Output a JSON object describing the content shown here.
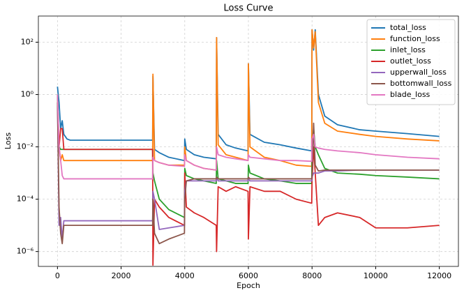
{
  "chart_data": {
    "type": "line",
    "title": "Loss Curve",
    "xlabel": "Epoch",
    "ylabel": "Loss",
    "x": [
      0,
      50,
      100,
      150,
      200,
      300,
      400,
      1000,
      2000,
      2990,
      3000,
      3050,
      3200,
      3500,
      3990,
      4000,
      4050,
      4300,
      4600,
      4990,
      5000,
      5050,
      5300,
      5600,
      5990,
      6000,
      6050,
      6500,
      7000,
      7500,
      7990,
      8000,
      8050,
      8100,
      8200,
      8400,
      8800,
      9500,
      10000,
      11000,
      12000
    ],
    "series": [
      {
        "name": "total_loss",
        "color": "#1f77b4",
        "values": [
          2,
          0.5,
          0.05,
          0.1,
          0.03,
          0.02,
          0.018,
          0.018,
          0.018,
          0.018,
          5,
          0.008,
          0.006,
          0.004,
          0.003,
          0.02,
          0.008,
          0.005,
          0.004,
          0.0035,
          150,
          0.03,
          0.012,
          0.009,
          0.007,
          15,
          0.03,
          0.015,
          0.012,
          0.009,
          0.007,
          300,
          50,
          300,
          1,
          0.15,
          0.07,
          0.045,
          0.04,
          0.032,
          0.025
        ]
      },
      {
        "name": "function_loss",
        "color": "#ff7f0e",
        "values": [
          1,
          0.01,
          0.003,
          0.005,
          0.003,
          0.003,
          0.003,
          0.003,
          0.003,
          0.003,
          6,
          0.003,
          0.0025,
          0.002,
          0.002,
          0.01,
          0.003,
          0.002,
          0.0015,
          0.0013,
          150,
          0.012,
          0.005,
          0.004,
          0.003,
          15,
          0.01,
          0.004,
          0.003,
          0.002,
          0.0018,
          300,
          60,
          250,
          0.5,
          0.08,
          0.04,
          0.03,
          0.025,
          0.02,
          0.017
        ]
      },
      {
        "name": "inlet_loss",
        "color": "#2ca02c",
        "values": [
          1,
          0.01,
          0.008,
          0.008,
          0.008,
          0.008,
          0.008,
          0.008,
          0.008,
          0.008,
          0.001,
          0.0005,
          0.0001,
          4e-05,
          2e-05,
          0.0015,
          0.0008,
          0.0006,
          0.0005,
          0.0004,
          0.003,
          0.0006,
          0.0005,
          0.0004,
          0.0004,
          0.002,
          0.001,
          0.0006,
          0.0005,
          0.0004,
          0.0004,
          0.01,
          0.05,
          0.01,
          0.005,
          0.0015,
          0.001,
          0.0009,
          0.0008,
          0.0007,
          0.0006
        ]
      },
      {
        "name": "outlet_loss",
        "color": "#d62728",
        "values": [
          0.5,
          0.01,
          0.05,
          0.05,
          0.008,
          0.008,
          0.008,
          0.008,
          0.008,
          0.008,
          3e-07,
          0.0001,
          5e-05,
          2e-05,
          1e-05,
          0.001,
          5e-05,
          3e-05,
          2e-05,
          1e-05,
          1e-06,
          0.0003,
          0.0002,
          0.0003,
          0.0002,
          3e-06,
          0.0003,
          0.0002,
          0.0002,
          0.0001,
          7e-05,
          0.0005,
          0.01,
          0.001,
          1e-05,
          2e-05,
          3e-05,
          2e-05,
          8e-06,
          8e-06,
          1e-05
        ]
      },
      {
        "name": "upperwall_loss",
        "color": "#9467bd",
        "values": [
          0.5,
          1e-05,
          2e-05,
          3e-06,
          1.5e-05,
          1.5e-05,
          1.5e-05,
          1.5e-05,
          1.5e-05,
          1.5e-05,
          0.0002,
          0.0001,
          7e-06,
          8e-06,
          1e-05,
          0.0002,
          0.0005,
          0.0005,
          0.0005,
          0.0005,
          0.0007,
          0.0005,
          0.0005,
          0.0005,
          0.0005,
          0.0006,
          0.0005,
          0.0005,
          0.0005,
          0.0005,
          0.0005,
          0.0007,
          0.001,
          0.001,
          0.001,
          0.0012,
          0.0012,
          0.0013,
          0.0013,
          0.0013,
          0.0013
        ]
      },
      {
        "name": "bottomwall_loss",
        "color": "#8c564b",
        "values": [
          0.5,
          5e-05,
          5e-06,
          2e-06,
          1e-05,
          1e-05,
          1e-05,
          1e-05,
          1e-05,
          1e-05,
          0.0001,
          5e-06,
          2e-06,
          3e-06,
          5e-06,
          0.0001,
          0.0005,
          0.0006,
          0.0006,
          0.0006,
          0.0007,
          0.0006,
          0.0006,
          0.0006,
          0.0006,
          0.0007,
          0.0006,
          0.0006,
          0.0006,
          0.0006,
          0.0006,
          0.0008,
          0.08,
          0.002,
          0.0012,
          0.0013,
          0.0013,
          0.0013,
          0.0013,
          0.0013,
          0.0013
        ]
      },
      {
        "name": "blade_loss",
        "color": "#e377c2",
        "values": [
          1,
          0.01,
          0.003,
          0.0008,
          0.0006,
          0.0006,
          0.0006,
          0.0006,
          0.0006,
          0.0006,
          0.004,
          0.003,
          0.0025,
          0.002,
          0.0018,
          0.005,
          0.003,
          0.002,
          0.0015,
          0.0013,
          0.01,
          0.005,
          0.004,
          0.0035,
          0.003,
          0.005,
          0.004,
          0.0035,
          0.003,
          0.003,
          0.0028,
          0.02,
          0.03,
          0.01,
          0.009,
          0.008,
          0.007,
          0.006,
          0.005,
          0.004,
          0.0035
        ]
      }
    ],
    "xlim": [
      -600,
      12600
    ],
    "xticks": [
      0,
      2000,
      4000,
      6000,
      8000,
      10000,
      12000
    ],
    "ylim": [
      2.7e-07,
      1000
    ],
    "ylog": true,
    "yticks": [
      {
        "value": 1e-06,
        "label": "10⁻⁶"
      },
      {
        "value": 0.0001,
        "label": "10⁻⁴"
      },
      {
        "value": 0.01,
        "label": "10⁻²"
      },
      {
        "value": 1,
        "label": "10⁰"
      },
      {
        "value": 100,
        "label": "10²"
      }
    ],
    "grid": true,
    "legend": "upper right"
  }
}
